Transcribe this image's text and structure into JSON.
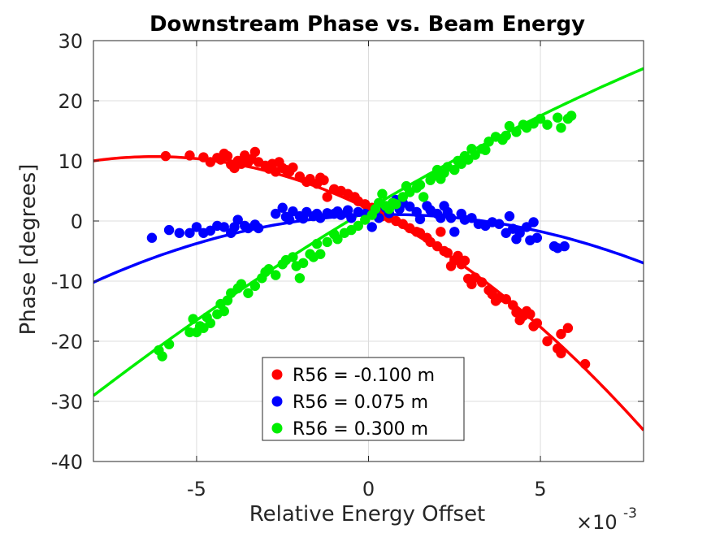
{
  "chart_data": {
    "type": "scatter",
    "title": "Downstream Phase vs. Beam Energy",
    "xlabel": "Relative Energy Offset",
    "ylabel": "Phase [degrees]",
    "x_multiplier_label": "×10",
    "x_multiplier_exponent": "-3",
    "xlim": [
      -0.008,
      0.008
    ],
    "ylim": [
      -40,
      30
    ],
    "xticks": [
      -0.005,
      0,
      0.005
    ],
    "xtick_labels": [
      "-5",
      "0",
      "5"
    ],
    "yticks": [
      30,
      20,
      10,
      0,
      -10,
      -20,
      -30,
      -40
    ],
    "ytick_labels": [
      "30",
      "20",
      "10",
      "0",
      "-10",
      "-20",
      "-30",
      "-40"
    ],
    "grid": true,
    "legend_position": "bottom-center",
    "series": [
      {
        "name": "R56 = -0.100 m",
        "color": "#ff0000",
        "fit_coeffs": [
          2.0,
          -2800,
          -225000
        ],
        "points": [
          [
            -0.0059,
            10.8
          ],
          [
            -0.0052,
            10.9
          ],
          [
            -0.0048,
            10.6
          ],
          [
            -0.0046,
            9.8
          ],
          [
            -0.0044,
            10.5
          ],
          [
            -0.0043,
            10.2
          ],
          [
            -0.0042,
            11.2
          ],
          [
            -0.0041,
            10.8
          ],
          [
            -0.004,
            9.4
          ],
          [
            -0.0039,
            8.8
          ],
          [
            -0.0038,
            10.0
          ],
          [
            -0.0037,
            9.5
          ],
          [
            -0.0036,
            10.9
          ],
          [
            -0.0035,
            9.8
          ],
          [
            -0.0034,
            10.3
          ],
          [
            -0.0033,
            11.5
          ],
          [
            -0.0032,
            9.8
          ],
          [
            -0.003,
            9.2
          ],
          [
            -0.0029,
            8.7
          ],
          [
            -0.0028,
            9.5
          ],
          [
            -0.0027,
            8.2
          ],
          [
            -0.0026,
            9.8
          ],
          [
            -0.0025,
            8.8
          ],
          [
            -0.0024,
            8.5
          ],
          [
            -0.0023,
            8.2
          ],
          [
            -0.0022,
            8.9
          ],
          [
            -0.002,
            7.4
          ],
          [
            -0.0018,
            6.5
          ],
          [
            -0.0017,
            7.0
          ],
          [
            -0.0015,
            6.2
          ],
          [
            -0.0014,
            7.2
          ],
          [
            -0.0013,
            6.8
          ],
          [
            -0.0012,
            4.0
          ],
          [
            -0.001,
            5.3
          ],
          [
            -0.0008,
            5.0
          ],
          [
            -0.0006,
            4.5
          ],
          [
            -0.0004,
            4.0
          ],
          [
            -0.0003,
            3.3
          ],
          [
            -0.0001,
            2.8
          ],
          [
            0.0001,
            2.2
          ],
          [
            0.0003,
            1.7
          ],
          [
            0.0004,
            0.8
          ],
          [
            0.0005,
            1.5
          ],
          [
            0.0006,
            0.5
          ],
          [
            0.0008,
            0.0
          ],
          [
            0.001,
            -0.5
          ],
          [
            0.0012,
            -1.2
          ],
          [
            0.0014,
            -1.8
          ],
          [
            0.0015,
            -2.0
          ],
          [
            0.0017,
            -2.8
          ],
          [
            0.0018,
            -3.5
          ],
          [
            0.002,
            -4.2
          ],
          [
            0.0021,
            -1.8
          ],
          [
            0.0022,
            -5.0
          ],
          [
            0.0023,
            -5.3
          ],
          [
            0.0024,
            -7.5
          ],
          [
            0.0025,
            -6.5
          ],
          [
            0.0026,
            -5.8
          ],
          [
            0.0027,
            -7.2
          ],
          [
            0.0028,
            -6.6
          ],
          [
            0.0029,
            -9.6
          ],
          [
            0.003,
            -10.5
          ],
          [
            0.0031,
            -9.4
          ],
          [
            0.0033,
            -10.2
          ],
          [
            0.0035,
            -11.5
          ],
          [
            0.0036,
            -12.2
          ],
          [
            0.0037,
            -13.3
          ],
          [
            0.0038,
            -12.8
          ],
          [
            0.004,
            -13.0
          ],
          [
            0.0042,
            -14.0
          ],
          [
            0.0043,
            -15.2
          ],
          [
            0.0044,
            -16.5
          ],
          [
            0.0045,
            -15.8
          ],
          [
            0.0046,
            -15.0
          ],
          [
            0.0047,
            -15.5
          ],
          [
            0.0048,
            -17.5
          ],
          [
            0.0049,
            -17.0
          ],
          [
            0.0052,
            -20.0
          ],
          [
            0.0055,
            -21.2
          ],
          [
            0.0056,
            -22.0
          ],
          [
            0.0056,
            -18.8
          ],
          [
            0.0058,
            -17.8
          ],
          [
            0.0063,
            -23.8
          ]
        ]
      },
      {
        "name": "R56 = 0.075 m",
        "color": "#0000ff",
        "fit_coeffs": [
          1.0,
          200,
          -150000
        ],
        "points": [
          [
            -0.0063,
            -2.8
          ],
          [
            -0.0058,
            -1.5
          ],
          [
            -0.0055,
            -2.0
          ],
          [
            -0.0052,
            -2.0
          ],
          [
            -0.005,
            -1.0
          ],
          [
            -0.0048,
            -2.0
          ],
          [
            -0.0046,
            -1.6
          ],
          [
            -0.0044,
            -0.8
          ],
          [
            -0.0042,
            -1.0
          ],
          [
            -0.004,
            -2.0
          ],
          [
            -0.0039,
            -1.0
          ],
          [
            -0.0038,
            0.2
          ],
          [
            -0.0036,
            -0.8
          ],
          [
            -0.0035,
            -1.2
          ],
          [
            -0.0033,
            -0.6
          ],
          [
            -0.0032,
            -1.2
          ],
          [
            -0.0027,
            1.2
          ],
          [
            -0.0025,
            2.2
          ],
          [
            -0.0024,
            0.7
          ],
          [
            -0.0023,
            0.2
          ],
          [
            -0.0022,
            1.6
          ],
          [
            -0.002,
            0.8
          ],
          [
            -0.0019,
            0.4
          ],
          [
            -0.0018,
            1.5
          ],
          [
            -0.0016,
            0.8
          ],
          [
            -0.0015,
            1.2
          ],
          [
            -0.0014,
            0.5
          ],
          [
            -0.0012,
            1.3
          ],
          [
            -0.001,
            1.2
          ],
          [
            -0.0009,
            1.6
          ],
          [
            -0.0008,
            1.0
          ],
          [
            -0.0006,
            1.8
          ],
          [
            -0.0005,
            0.5
          ],
          [
            -0.0003,
            1.5
          ],
          [
            -0.0001,
            1.2
          ],
          [
            0.0001,
            -1.0
          ],
          [
            0.0002,
            1.8
          ],
          [
            0.0003,
            0.5
          ],
          [
            0.0005,
            2.2
          ],
          [
            0.0006,
            1.3
          ],
          [
            0.0007,
            3.0
          ],
          [
            0.0008,
            3.5
          ],
          [
            0.0009,
            2.0
          ],
          [
            0.001,
            3.0
          ],
          [
            0.0012,
            2.4
          ],
          [
            0.0014,
            1.5
          ],
          [
            0.0015,
            0.3
          ],
          [
            0.0017,
            2.5
          ],
          [
            0.0018,
            1.8
          ],
          [
            0.002,
            1.2
          ],
          [
            0.0021,
            0.5
          ],
          [
            0.0022,
            2.5
          ],
          [
            0.0023,
            1.5
          ],
          [
            0.0024,
            0.5
          ],
          [
            0.0025,
            -1.8
          ],
          [
            0.0027,
            1.2
          ],
          [
            0.0028,
            0.2
          ],
          [
            0.003,
            0.5
          ],
          [
            0.0032,
            -0.5
          ],
          [
            0.0034,
            -0.8
          ],
          [
            0.0036,
            -0.2
          ],
          [
            0.0038,
            -0.5
          ],
          [
            0.004,
            -2.0
          ],
          [
            0.0041,
            0.8
          ],
          [
            0.0042,
            -1.3
          ],
          [
            0.0043,
            -3.0
          ],
          [
            0.0044,
            -2.0
          ],
          [
            0.0046,
            -1.0
          ],
          [
            0.0047,
            -3.2
          ],
          [
            0.0048,
            -0.2
          ],
          [
            0.0049,
            -2.8
          ],
          [
            0.0054,
            -4.2
          ],
          [
            0.0055,
            -4.5
          ],
          [
            0.0057,
            -4.2
          ]
        ]
      },
      {
        "name": "R56 = 0.300 m",
        "color": "#00ee00",
        "fit_coeffs": [
          2.0,
          3400,
          -60000
        ],
        "points": [
          [
            -0.0061,
            -21.5
          ],
          [
            -0.006,
            -22.5
          ],
          [
            -0.0058,
            -20.5
          ],
          [
            -0.0052,
            -18.5
          ],
          [
            -0.0051,
            -16.3
          ],
          [
            -0.005,
            -18.5
          ],
          [
            -0.0049,
            -17.5
          ],
          [
            -0.0048,
            -17.8
          ],
          [
            -0.0047,
            -16.0
          ],
          [
            -0.0046,
            -17.0
          ],
          [
            -0.0044,
            -15.5
          ],
          [
            -0.0043,
            -13.8
          ],
          [
            -0.0042,
            -15.0
          ],
          [
            -0.0041,
            -13.2
          ],
          [
            -0.004,
            -12.0
          ],
          [
            -0.0038,
            -11.2
          ],
          [
            -0.0037,
            -10.5
          ],
          [
            -0.0035,
            -12.0
          ],
          [
            -0.0033,
            -10.8
          ],
          [
            -0.0031,
            -9.5
          ],
          [
            -0.003,
            -8.5
          ],
          [
            -0.0029,
            -8.0
          ],
          [
            -0.0027,
            -9.0
          ],
          [
            -0.0025,
            -7.2
          ],
          [
            -0.0024,
            -6.5
          ],
          [
            -0.0022,
            -6.0
          ],
          [
            -0.0021,
            -7.5
          ],
          [
            -0.002,
            -9.5
          ],
          [
            -0.0019,
            -7.0
          ],
          [
            -0.0017,
            -5.5
          ],
          [
            -0.0016,
            -6.0
          ],
          [
            -0.0015,
            -3.8
          ],
          [
            -0.0014,
            -5.5
          ],
          [
            -0.0012,
            -3.5
          ],
          [
            -0.001,
            -2.2
          ],
          [
            -0.0009,
            -3.0
          ],
          [
            -0.0007,
            -2.0
          ],
          [
            -0.0005,
            -1.5
          ],
          [
            -0.0003,
            -0.8
          ],
          [
            -0.0001,
            0.2
          ],
          [
            0.0001,
            1.0
          ],
          [
            0.0002,
            2.0
          ],
          [
            0.0003,
            3.0
          ],
          [
            0.0004,
            4.5
          ],
          [
            0.0005,
            2.5
          ],
          [
            0.0006,
            2.0
          ],
          [
            0.0007,
            3.0
          ],
          [
            0.0008,
            2.8
          ],
          [
            0.001,
            4.0
          ],
          [
            0.0011,
            5.8
          ],
          [
            0.0012,
            4.8
          ],
          [
            0.0014,
            5.5
          ],
          [
            0.0015,
            6.0
          ],
          [
            0.0016,
            4.0
          ],
          [
            0.0018,
            6.8
          ],
          [
            0.0019,
            7.5
          ],
          [
            0.002,
            8.5
          ],
          [
            0.0021,
            7.0
          ],
          [
            0.0022,
            8.0
          ],
          [
            0.0023,
            9.0
          ],
          [
            0.0025,
            8.5
          ],
          [
            0.0026,
            10.0
          ],
          [
            0.0027,
            9.5
          ],
          [
            0.0028,
            10.8
          ],
          [
            0.0029,
            10.2
          ],
          [
            0.003,
            12.0
          ],
          [
            0.0031,
            11.0
          ],
          [
            0.0033,
            12.0
          ],
          [
            0.0034,
            11.8
          ],
          [
            0.0035,
            13.2
          ],
          [
            0.0037,
            14.0
          ],
          [
            0.0039,
            13.5
          ],
          [
            0.004,
            14.2
          ],
          [
            0.0041,
            15.8
          ],
          [
            0.0043,
            14.8
          ],
          [
            0.0045,
            16.0
          ],
          [
            0.0046,
            15.5
          ],
          [
            0.0048,
            16.2
          ],
          [
            0.005,
            17.0
          ],
          [
            0.0052,
            16.0
          ],
          [
            0.0055,
            17.2
          ],
          [
            0.0056,
            15.5
          ],
          [
            0.0058,
            17.0
          ],
          [
            0.0059,
            17.5
          ]
        ]
      }
    ]
  }
}
